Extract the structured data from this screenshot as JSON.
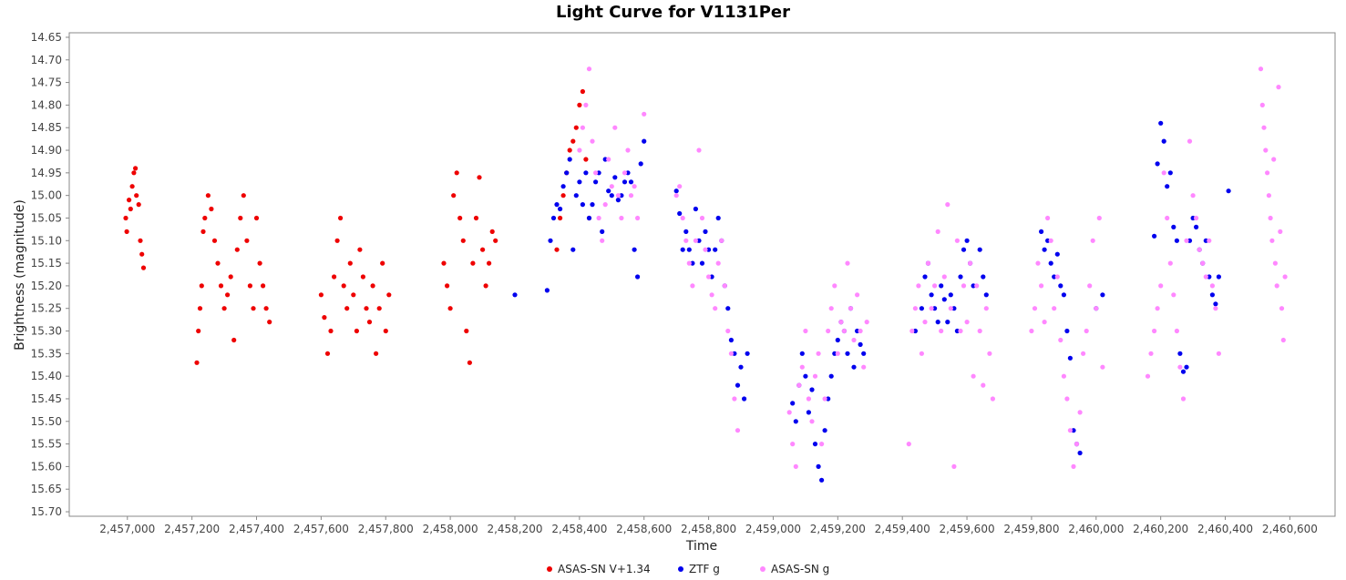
{
  "chart_data": {
    "type": "scatter",
    "title": "Light Curve for V1131Per",
    "xlabel": "Time",
    "ylabel": "Brightness (magnitude)",
    "xlim": [
      2456820,
      2460740
    ],
    "ylim": [
      15.71,
      14.64
    ],
    "y_inverted": true,
    "x_ticks": [
      2457000,
      2457200,
      2457400,
      2457600,
      2457800,
      2458000,
      2458200,
      2458400,
      2458600,
      2458800,
      2459000,
      2459200,
      2459400,
      2459600,
      2459800,
      2460000,
      2460200,
      2460400,
      2460600
    ],
    "x_tick_labels": [
      "2,457,000",
      "2,457,200",
      "2,457,400",
      "2,457,600",
      "2,457,800",
      "2,458,000",
      "2,458,200",
      "2,458,400",
      "2,458,600",
      "2,458,800",
      "2,459,000",
      "2,459,200",
      "2,459,400",
      "2,459,600",
      "2,459,800",
      "2,460,000",
      "2,460,200",
      "2,460,400",
      "2,460,600"
    ],
    "y_ticks": [
      14.65,
      14.7,
      14.75,
      14.8,
      14.85,
      14.9,
      14.95,
      15.0,
      15.05,
      15.1,
      15.15,
      15.2,
      15.25,
      15.3,
      15.35,
      15.4,
      15.45,
      15.5,
      15.55,
      15.6,
      15.65,
      15.7
    ],
    "y_tick_labels": [
      "14.65",
      "14.70",
      "14.75",
      "14.80",
      "14.85",
      "14.90",
      "14.95",
      "15.00",
      "15.05",
      "15.10",
      "15.15",
      "15.20",
      "15.25",
      "15.30",
      "15.35",
      "15.40",
      "15.45",
      "15.50",
      "15.55",
      "15.60",
      "15.65",
      "15.70"
    ],
    "grid": false,
    "legend_position": "bottom",
    "series": [
      {
        "name": "ASAS-SN V+1.34",
        "color": "#ee0000",
        "x": [
          2456995,
          2456998,
          2457005,
          2457010,
          2457015,
          2457020,
          2457025,
          2457028,
          2457035,
          2457040,
          2457045,
          2457050,
          2457215,
          2457220,
          2457225,
          2457230,
          2457235,
          2457240,
          2457250,
          2457260,
          2457270,
          2457280,
          2457290,
          2457300,
          2457310,
          2457320,
          2457330,
          2457340,
          2457350,
          2457360,
          2457370,
          2457380,
          2457390,
          2457400,
          2457410,
          2457420,
          2457430,
          2457440,
          2457600,
          2457610,
          2457620,
          2457630,
          2457640,
          2457650,
          2457660,
          2457670,
          2457680,
          2457690,
          2457700,
          2457710,
          2457720,
          2457730,
          2457740,
          2457750,
          2457760,
          2457770,
          2457780,
          2457790,
          2457800,
          2457810,
          2457980,
          2457990,
          2458000,
          2458010,
          2458020,
          2458030,
          2458040,
          2458050,
          2458060,
          2458070,
          2458080,
          2458090,
          2458100,
          2458110,
          2458120,
          2458130,
          2458140,
          2458330,
          2458340,
          2458350,
          2458360,
          2458370,
          2458380,
          2458390,
          2458400,
          2458410,
          2458420,
          2458430
        ],
        "y": [
          15.05,
          15.08,
          15.01,
          15.03,
          14.98,
          14.95,
          14.94,
          15.0,
          15.02,
          15.1,
          15.13,
          15.16,
          15.37,
          15.3,
          15.25,
          15.2,
          15.08,
          15.05,
          15.0,
          15.03,
          15.1,
          15.15,
          15.2,
          15.25,
          15.22,
          15.18,
          15.32,
          15.12,
          15.05,
          15.0,
          15.1,
          15.2,
          15.25,
          15.05,
          15.15,
          15.2,
          15.25,
          15.28,
          15.22,
          15.27,
          15.35,
          15.3,
          15.18,
          15.1,
          15.05,
          15.2,
          15.25,
          15.15,
          15.22,
          15.3,
          15.12,
          15.18,
          15.25,
          15.28,
          15.2,
          15.35,
          15.25,
          15.15,
          15.3,
          15.22,
          15.15,
          15.2,
          15.25,
          15.0,
          14.95,
          15.05,
          15.1,
          15.3,
          15.37,
          15.15,
          15.05,
          14.96,
          15.12,
          15.2,
          15.15,
          15.08,
          15.1,
          15.12,
          15.05,
          15.0,
          14.95,
          14.9,
          14.88,
          14.85,
          14.8,
          14.77,
          14.92,
          15.05
        ]
      },
      {
        "name": "ZTF g",
        "color": "#0000ee",
        "x": [
          2458200,
          2458300,
          2458310,
          2458320,
          2458330,
          2458340,
          2458350,
          2458360,
          2458370,
          2458380,
          2458390,
          2458400,
          2458410,
          2458420,
          2458430,
          2458440,
          2458450,
          2458460,
          2458470,
          2458480,
          2458490,
          2458500,
          2458510,
          2458520,
          2458530,
          2458540,
          2458550,
          2458560,
          2458570,
          2458580,
          2458590,
          2458600,
          2458700,
          2458710,
          2458720,
          2458730,
          2458740,
          2458750,
          2458760,
          2458770,
          2458780,
          2458790,
          2458800,
          2458810,
          2458820,
          2458830,
          2458840,
          2458850,
          2458860,
          2458870,
          2458880,
          2458890,
          2458900,
          2458910,
          2458920,
          2459060,
          2459070,
          2459080,
          2459090,
          2459100,
          2459110,
          2459120,
          2459130,
          2459140,
          2459150,
          2459160,
          2459170,
          2459180,
          2459190,
          2459200,
          2459210,
          2459220,
          2459230,
          2459240,
          2459250,
          2459260,
          2459270,
          2459280,
          2459440,
          2459460,
          2459470,
          2459480,
          2459490,
          2459500,
          2459510,
          2459520,
          2459530,
          2459540,
          2459550,
          2459560,
          2459570,
          2459580,
          2459590,
          2459600,
          2459610,
          2459620,
          2459640,
          2459650,
          2459660,
          2459830,
          2459840,
          2459850,
          2459860,
          2459870,
          2459880,
          2459890,
          2459900,
          2459910,
          2459920,
          2459930,
          2459940,
          2459950,
          2460000,
          2460020,
          2460180,
          2460190,
          2460200,
          2460210,
          2460220,
          2460230,
          2460240,
          2460250,
          2460260,
          2460270,
          2460280,
          2460290,
          2460300,
          2460310,
          2460320,
          2460330,
          2460340,
          2460350,
          2460360,
          2460370,
          2460380,
          2460410
        ],
        "y": [
          15.22,
          15.21,
          15.1,
          15.05,
          15.02,
          15.03,
          14.98,
          14.95,
          14.92,
          15.12,
          15.0,
          14.97,
          15.02,
          14.95,
          15.05,
          15.02,
          14.97,
          14.95,
          15.08,
          14.92,
          14.99,
          15.0,
          14.96,
          15.01,
          15.0,
          14.97,
          14.95,
          14.97,
          15.12,
          15.18,
          14.93,
          14.88,
          14.99,
          15.04,
          15.12,
          15.08,
          15.12,
          15.15,
          15.03,
          15.1,
          15.15,
          15.08,
          15.12,
          15.18,
          15.12,
          15.05,
          15.1,
          15.2,
          15.25,
          15.32,
          15.35,
          15.42,
          15.38,
          15.45,
          15.35,
          15.46,
          15.5,
          15.42,
          15.35,
          15.4,
          15.48,
          15.43,
          15.55,
          15.6,
          15.63,
          15.52,
          15.45,
          15.4,
          15.35,
          15.32,
          15.28,
          15.3,
          15.35,
          15.25,
          15.38,
          15.3,
          15.33,
          15.35,
          15.3,
          15.25,
          15.18,
          15.15,
          15.22,
          15.25,
          15.28,
          15.2,
          15.23,
          15.28,
          15.22,
          15.25,
          15.3,
          15.18,
          15.12,
          15.1,
          15.15,
          15.2,
          15.12,
          15.18,
          15.22,
          15.08,
          15.12,
          15.1,
          15.15,
          15.18,
          15.13,
          15.2,
          15.22,
          15.3,
          15.36,
          15.52,
          15.55,
          15.57,
          15.25,
          15.22,
          15.09,
          14.93,
          14.84,
          14.88,
          14.98,
          14.95,
          15.07,
          15.1,
          15.35,
          15.39,
          15.38,
          15.1,
          15.05,
          15.07,
          15.12,
          15.15,
          15.1,
          15.18,
          15.22,
          15.24,
          15.18,
          14.99
        ]
      },
      {
        "name": "ASAS-SN g",
        "color": "#ff88ff",
        "x": [
          2458400,
          2458410,
          2458420,
          2458430,
          2458440,
          2458450,
          2458460,
          2458470,
          2458480,
          2458490,
          2458500,
          2458510,
          2458520,
          2458530,
          2458540,
          2458550,
          2458560,
          2458570,
          2458580,
          2458600,
          2458700,
          2458710,
          2458720,
          2458730,
          2458740,
          2458750,
          2458760,
          2458770,
          2458780,
          2458790,
          2458800,
          2458810,
          2458820,
          2458830,
          2458840,
          2458850,
          2458860,
          2458870,
          2458880,
          2458890,
          2459050,
          2459060,
          2459070,
          2459080,
          2459090,
          2459100,
          2459110,
          2459120,
          2459130,
          2459140,
          2459150,
          2459160,
          2459170,
          2459180,
          2459190,
          2459200,
          2459210,
          2459220,
          2459230,
          2459240,
          2459250,
          2459260,
          2459270,
          2459280,
          2459290,
          2459420,
          2459430,
          2459440,
          2459450,
          2459460,
          2459470,
          2459480,
          2459490,
          2459500,
          2459510,
          2459520,
          2459530,
          2459540,
          2459550,
          2459560,
          2459570,
          2459580,
          2459590,
          2459600,
          2459610,
          2459620,
          2459630,
          2459640,
          2459650,
          2459660,
          2459670,
          2459680,
          2459800,
          2459810,
          2459820,
          2459830,
          2459840,
          2459850,
          2459860,
          2459870,
          2459880,
          2459890,
          2459900,
          2459910,
          2459920,
          2459930,
          2459940,
          2459950,
          2459960,
          2459970,
          2459980,
          2459990,
          2460000,
          2460010,
          2460020,
          2460160,
          2460170,
          2460180,
          2460190,
          2460200,
          2460210,
          2460220,
          2460230,
          2460240,
          2460250,
          2460260,
          2460270,
          2460280,
          2460290,
          2460300,
          2460310,
          2460320,
          2460330,
          2460340,
          2460350,
          2460360,
          2460370,
          2460380,
          2460510,
          2460515,
          2460520,
          2460525,
          2460530,
          2460535,
          2460540,
          2460545,
          2460550,
          2460555,
          2460560,
          2460565,
          2460570,
          2460575,
          2460580,
          2460585
        ],
        "y": [
          14.9,
          14.85,
          14.8,
          14.72,
          14.88,
          14.95,
          15.05,
          15.1,
          15.02,
          14.92,
          14.98,
          14.85,
          15.0,
          15.05,
          14.95,
          14.9,
          15.0,
          14.98,
          15.05,
          14.82,
          15.0,
          14.98,
          15.05,
          15.1,
          15.15,
          15.2,
          15.1,
          14.9,
          15.05,
          15.12,
          15.18,
          15.22,
          15.25,
          15.15,
          15.1,
          15.2,
          15.3,
          15.35,
          15.45,
          15.52,
          15.48,
          15.55,
          15.6,
          15.42,
          15.38,
          15.3,
          15.45,
          15.5,
          15.4,
          15.35,
          15.55,
          15.45,
          15.3,
          15.25,
          15.2,
          15.35,
          15.28,
          15.3,
          15.15,
          15.25,
          15.32,
          15.22,
          15.3,
          15.38,
          15.28,
          15.55,
          15.3,
          15.25,
          15.2,
          15.35,
          15.28,
          15.15,
          15.25,
          15.2,
          15.08,
          15.3,
          15.18,
          15.02,
          15.25,
          15.6,
          15.1,
          15.3,
          15.2,
          15.28,
          15.15,
          15.4,
          15.2,
          15.3,
          15.42,
          15.25,
          15.35,
          15.45,
          15.3,
          15.25,
          15.15,
          15.2,
          15.28,
          15.05,
          15.1,
          15.25,
          15.18,
          15.32,
          15.4,
          15.45,
          15.52,
          15.6,
          15.55,
          15.48,
          15.35,
          15.3,
          15.2,
          15.1,
          15.25,
          15.05,
          15.38,
          15.4,
          15.35,
          15.3,
          15.25,
          15.2,
          14.95,
          15.05,
          15.15,
          15.22,
          15.3,
          15.38,
          15.45,
          15.1,
          14.88,
          15.0,
          15.05,
          15.12,
          15.15,
          15.18,
          15.1,
          15.2,
          15.25,
          15.35,
          14.72,
          14.8,
          14.85,
          14.9,
          14.95,
          15.0,
          15.05,
          15.1,
          14.92,
          15.15,
          15.2,
          14.76,
          15.08,
          15.25,
          15.32,
          15.18
        ]
      }
    ]
  }
}
